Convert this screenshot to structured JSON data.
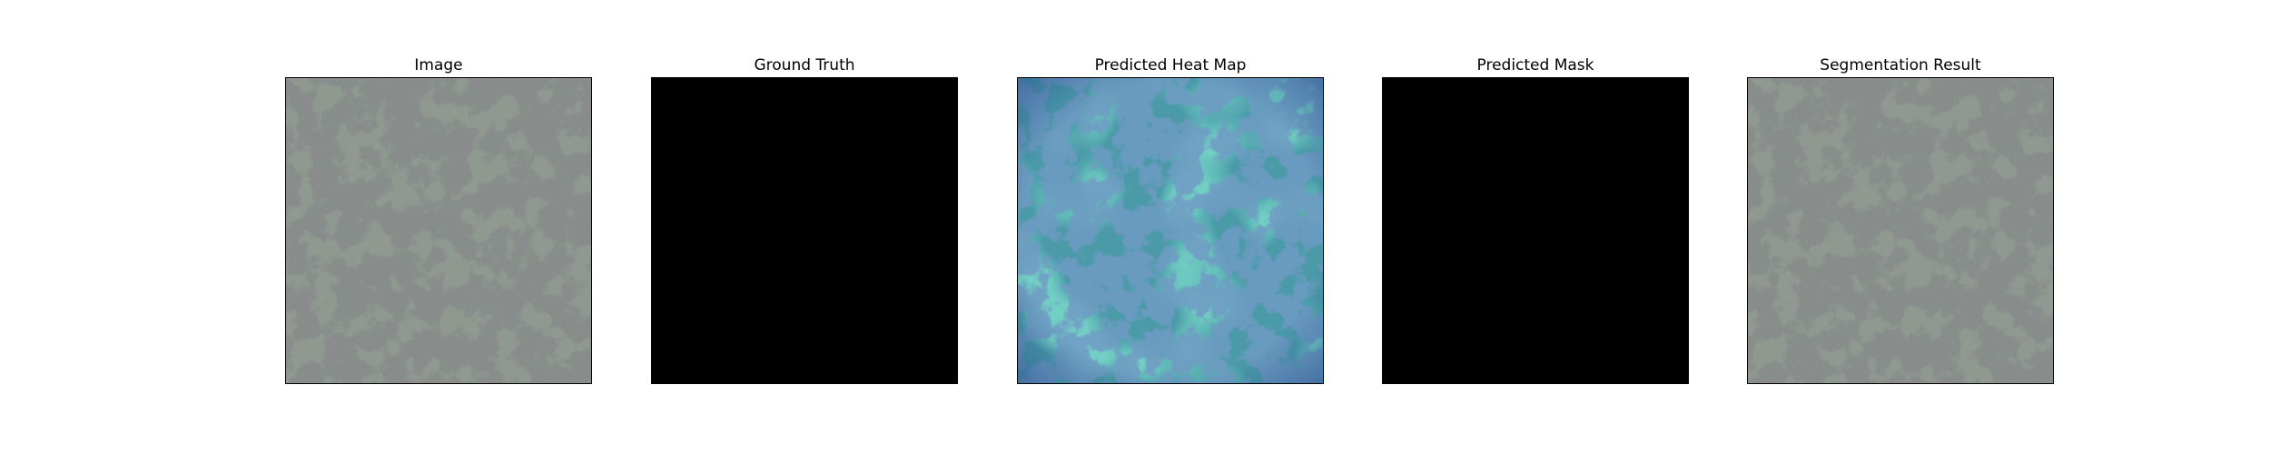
{
  "figure": {
    "panels": [
      {
        "id": "image",
        "title": "Image",
        "kind": "texture"
      },
      {
        "id": "ground-truth",
        "title": "Ground Truth",
        "kind": "mask"
      },
      {
        "id": "heatmap",
        "title": "Predicted Heat Map",
        "kind": "heatmap"
      },
      {
        "id": "predicted-mask",
        "title": "Predicted Mask",
        "kind": "mask"
      },
      {
        "id": "segmentation",
        "title": "Segmentation Result",
        "kind": "texture"
      }
    ]
  },
  "colors": {
    "background": "#ffffff",
    "frame": "#000000",
    "texture_base": "#8e988f",
    "texture_spots": "#3e423f",
    "mask_fill": "#000000",
    "heatmap_base": "#4a9aa8",
    "heatmap_spots": "#2f5f92",
    "heatmap_hot": "#34b39c"
  }
}
